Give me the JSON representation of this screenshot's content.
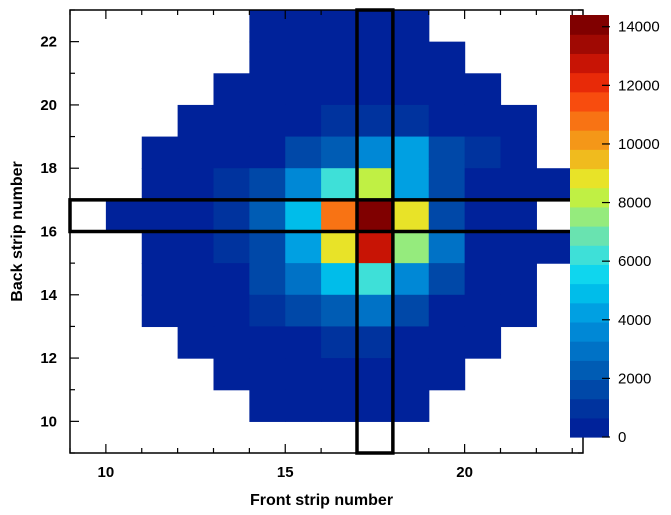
{
  "chart_data": {
    "type": "heatmap",
    "xlabel": "Front strip number",
    "ylabel": "Back strip number",
    "xlim": [
      9,
      23.3
    ],
    "ylim": [
      9,
      23
    ],
    "x_ticks": [
      10,
      15,
      20
    ],
    "y_ticks": [
      10,
      12,
      14,
      16,
      18,
      20,
      22
    ],
    "colorbar": {
      "min": 0,
      "max": 14400,
      "ticks": [
        0,
        2000,
        4000,
        6000,
        8000,
        10000,
        12000,
        14000
      ],
      "colors": [
        "#00229a",
        "#00339e",
        "#0048a8",
        "#005cb4",
        "#0072c6",
        "#0088d6",
        "#00a0e2",
        "#00bdea",
        "#0fd6ee",
        "#3ee0d8",
        "#69e3b0",
        "#95eb7d",
        "#c0f044",
        "#e8e328",
        "#f0bb1e",
        "#f49718",
        "#f87314",
        "#f84c0e",
        "#e82a08",
        "#c81405",
        "#a00903",
        "#800000"
      ]
    },
    "rows": [
      {
        "y": 22,
        "x_start": 14,
        "values": [
          300,
          300,
          300,
          300,
          300
        ]
      },
      {
        "y": 21,
        "x_start": 14,
        "values": [
          300,
          300,
          300,
          300,
          300,
          300
        ]
      },
      {
        "y": 20,
        "x_start": 13,
        "values": [
          300,
          300,
          300,
          300,
          300,
          300,
          300,
          300
        ]
      },
      {
        "y": 19,
        "x_start": 12,
        "values": [
          300,
          300,
          300,
          300,
          900,
          900,
          1300,
          300,
          300,
          300
        ]
      },
      {
        "y": 18,
        "x_start": 11,
        "values": [
          300,
          300,
          300,
          300,
          1500,
          2300,
          3400,
          4000,
          1800,
          1100,
          300
        ]
      },
      {
        "y": 17,
        "x_start": 11,
        "values": [
          300,
          300,
          1000,
          1700,
          3300,
          6500,
          8300,
          4500,
          1400,
          300,
          300,
          300
        ]
      },
      {
        "y": 16,
        "x_start": 10,
        "values": [
          300,
          300,
          300,
          1000,
          2100,
          4600,
          10600,
          14300,
          8800,
          1800,
          300,
          300
        ]
      },
      {
        "y": 15,
        "x_start": 11,
        "values": [
          300,
          300,
          1000,
          1700,
          4300,
          9000,
          13000,
          7700,
          2800,
          300,
          300,
          300
        ]
      },
      {
        "y": 14,
        "x_start": 11,
        "values": [
          300,
          300,
          300,
          1400,
          2700,
          5200,
          6200,
          3300,
          1500,
          300,
          300
        ]
      },
      {
        "y": 13,
        "x_start": 11,
        "values": [
          300,
          300,
          300,
          900,
          1600,
          2500,
          2700,
          1600,
          300,
          300,
          300
        ]
      },
      {
        "y": 12,
        "x_start": 12,
        "values": [
          300,
          300,
          300,
          300,
          900,
          1300,
          300,
          300,
          300
        ]
      },
      {
        "y": 11,
        "x_start": 13,
        "values": [
          300,
          300,
          300,
          300,
          300,
          300,
          300
        ]
      },
      {
        "y": 10,
        "x_start": 14,
        "values": [
          300,
          300,
          300,
          300,
          300
        ]
      }
    ],
    "highlight_column_x": 17.5,
    "highlight_row_y": 16.5
  }
}
